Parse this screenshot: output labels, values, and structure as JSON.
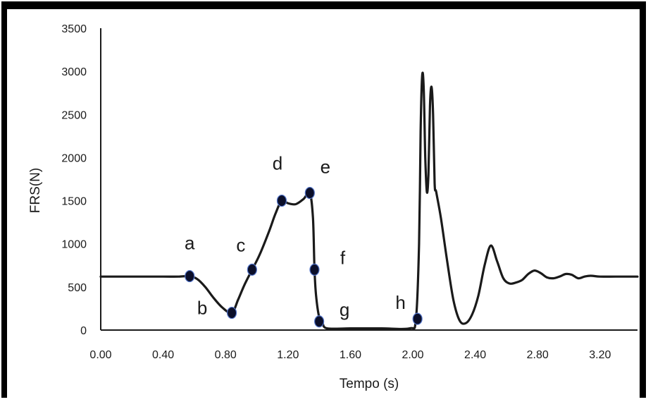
{
  "chart_data": {
    "type": "line",
    "xlabel": "Tempo  (s)",
    "ylabel": "FRS(N)",
    "xlim": [
      0,
      3.44
    ],
    "ylim": [
      0,
      3500
    ],
    "grid": false,
    "x_ticks": [
      "0.00",
      "0.40",
      "0.80",
      "1.20",
      "1.60",
      "2.00",
      "2.40",
      "2.80",
      "3.20"
    ],
    "y_ticks": [
      "0",
      "500",
      "1000",
      "1500",
      "2000",
      "2500",
      "3000",
      "3500"
    ],
    "series": [
      {
        "color": "#1a1a1a",
        "x": [
          0.0,
          0.2,
          0.4,
          0.5,
          0.57,
          0.62,
          0.67,
          0.72,
          0.78,
          0.84,
          0.88,
          0.92,
          0.97,
          1.02,
          1.08,
          1.12,
          1.16,
          1.2,
          1.25,
          1.3,
          1.34,
          1.36,
          1.37,
          1.38,
          1.4,
          1.42,
          1.45,
          1.6,
          1.8,
          1.98,
          2.02,
          2.04,
          2.05,
          2.06,
          2.07,
          2.08,
          2.09,
          2.1,
          2.11,
          2.12,
          2.13,
          2.14,
          2.15,
          2.18,
          2.22,
          2.26,
          2.3,
          2.34,
          2.38,
          2.42,
          2.46,
          2.5,
          2.54,
          2.58,
          2.62,
          2.66,
          2.7,
          2.74,
          2.78,
          2.82,
          2.86,
          2.9,
          2.94,
          2.98,
          3.02,
          3.06,
          3.1,
          3.14,
          3.2,
          3.3,
          3.44
        ],
        "y": [
          620,
          620,
          620,
          620,
          625,
          590,
          500,
          380,
          260,
          200,
          350,
          520,
          700,
          880,
          1150,
          1350,
          1500,
          1470,
          1460,
          1520,
          1590,
          1300,
          700,
          400,
          150,
          90,
          20,
          20,
          20,
          20,
          130,
          1000,
          2300,
          2950,
          2800,
          2000,
          1600,
          1800,
          2600,
          2820,
          2500,
          1700,
          1600,
          1300,
          800,
          350,
          110,
          80,
          180,
          400,
          750,
          980,
          800,
          600,
          540,
          550,
          580,
          650,
          690,
          660,
          610,
          600,
          620,
          650,
          640,
          600,
          620,
          630,
          620,
          620,
          620
        ]
      }
    ],
    "annotations": [
      {
        "label": "a",
        "x": 0.57,
        "y": 625
      },
      {
        "label": "b",
        "x": 0.84,
        "y": 200
      },
      {
        "label": "c",
        "x": 0.97,
        "y": 700
      },
      {
        "label": "d",
        "x": 1.16,
        "y": 1500
      },
      {
        "label": "e",
        "x": 1.34,
        "y": 1590
      },
      {
        "label": "f",
        "x": 1.37,
        "y": 700
      },
      {
        "label": "g",
        "x": 1.4,
        "y": 100
      },
      {
        "label": "h",
        "x": 2.03,
        "y": 130
      }
    ]
  }
}
